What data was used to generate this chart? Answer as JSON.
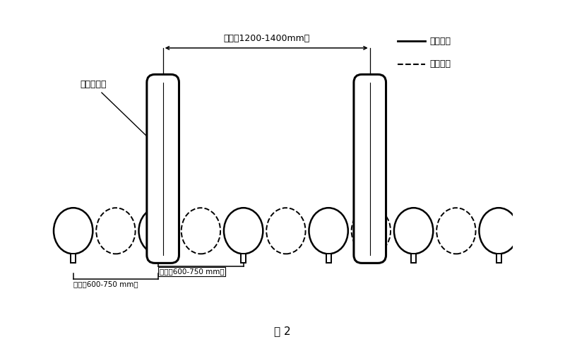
{
  "title": "图 2",
  "legend_solid": "耕前地表",
  "legend_dashed": "耕后地表",
  "label_wheel": "拖拉机后轮",
  "label_wheelbase": "轮距（1200-1400mm）",
  "label_ridge1": "垄距（600-750 mm）",
  "label_ridge2": "垄距（600-750 mm）",
  "bg_color": "#ffffff",
  "line_color": "#000000",
  "fig_width": 8.0,
  "fig_height": 4.94,
  "dpi": 100,
  "xlim": [
    0,
    20
  ],
  "ylim": [
    -4.5,
    10.5
  ]
}
